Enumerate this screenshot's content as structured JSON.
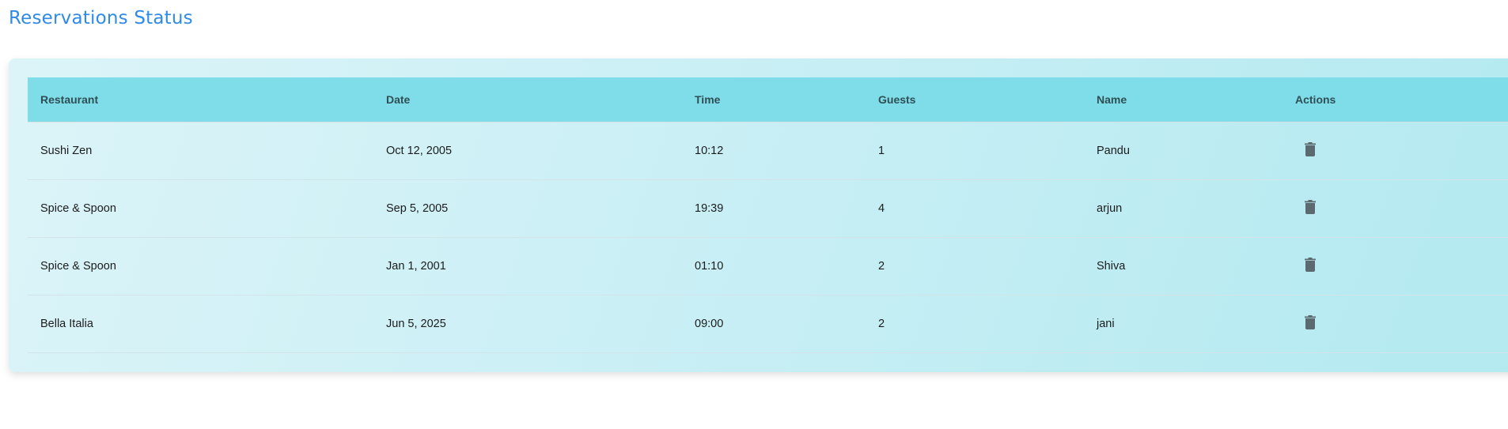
{
  "page": {
    "title": "Reservations Status"
  },
  "colors": {
    "title": "#2f8ae8",
    "header_bg": "#7fdde9",
    "icon": "#5a6a6e"
  },
  "table": {
    "columns": [
      "Restaurant",
      "Date",
      "Time",
      "Guests",
      "Name",
      "Actions"
    ],
    "rows": [
      {
        "restaurant": "Sushi Zen",
        "date": "Oct 12, 2005",
        "time": "10:12",
        "guests": "1",
        "name": "Pandu",
        "action_icon": "trash-icon"
      },
      {
        "restaurant": "Spice & Spoon",
        "date": "Sep 5, 2005",
        "time": "19:39",
        "guests": "4",
        "name": "arjun",
        "action_icon": "trash-icon"
      },
      {
        "restaurant": "Spice & Spoon",
        "date": "Jan 1, 2001",
        "time": "01:10",
        "guests": "2",
        "name": "Shiva",
        "action_icon": "trash-icon"
      },
      {
        "restaurant": "Bella Italia",
        "date": "Jun 5, 2025",
        "time": "09:00",
        "guests": "2",
        "name": "jani",
        "action_icon": "trash-icon"
      }
    ]
  }
}
